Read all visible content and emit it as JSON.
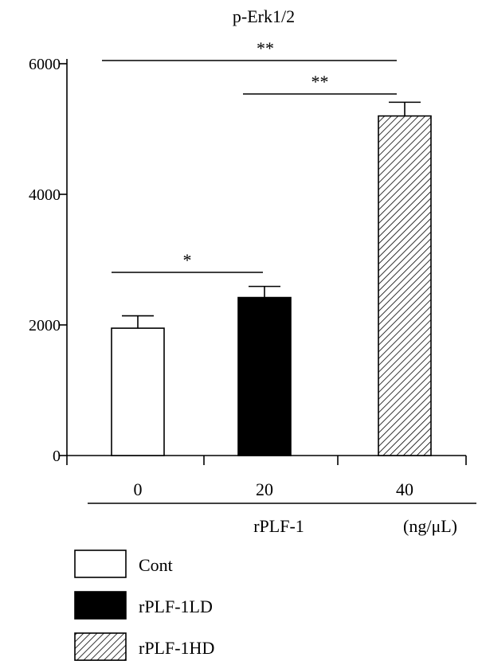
{
  "chart_data": {
    "type": "bar",
    "title": "p-Erk1/2",
    "categories": [
      "0",
      "20",
      "40"
    ],
    "values": [
      1950,
      2420,
      5200
    ],
    "errors": [
      190,
      170,
      210
    ],
    "ylim": [
      0,
      6000
    ],
    "yticks": [
      0,
      2000,
      4000,
      6000
    ],
    "x_group_label": "rPLF-1",
    "x_unit": "(ng/μL)",
    "fills": [
      "white",
      "black",
      "hatch"
    ],
    "significance": [
      {
        "from": 0,
        "to": 2,
        "label": "**"
      },
      {
        "from": 1,
        "to": 2,
        "label": "**"
      },
      {
        "from": 0,
        "to": 1,
        "label": "*"
      }
    ],
    "legend": [
      {
        "label": "Cont",
        "fill": "white"
      },
      {
        "label": "rPLF-1LD",
        "fill": "black"
      },
      {
        "label": "rPLF-1HD",
        "fill": "hatch"
      }
    ],
    "legend_position": "bottom-left",
    "grid": false
  }
}
